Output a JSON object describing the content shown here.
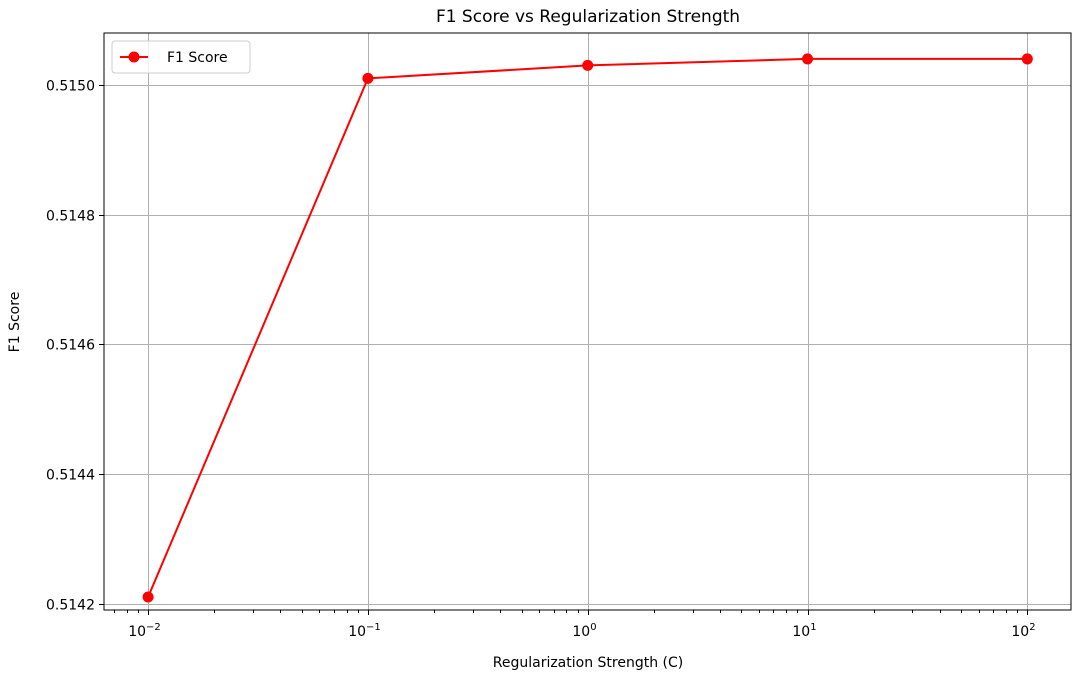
{
  "chart_data": {
    "type": "line",
    "title": "F1 Score vs Regularization Strength",
    "xlabel": "Regularization Strength (C)",
    "ylabel": "F1 Score",
    "xscale": "log",
    "x": [
      0.01,
      0.1,
      1,
      10,
      100
    ],
    "xtick_labels": [
      "10^-2",
      "10^-1",
      "10^0",
      "10^1",
      "10^2"
    ],
    "xlim": [
      0.0063,
      158
    ],
    "series": [
      {
        "name": "F1 Score",
        "color": "#ff0000",
        "marker": "circle",
        "values": [
          0.51421,
          0.51501,
          0.51503,
          0.51504,
          0.51504
        ]
      }
    ],
    "yticks": [
      0.5142,
      0.5144,
      0.5146,
      0.5148,
      0.515
    ],
    "ytick_labels": [
      "0.5142",
      "0.5144",
      "0.5146",
      "0.5148",
      "0.5150"
    ],
    "ylim": [
      0.51419,
      0.51508
    ],
    "grid": true,
    "legend_position": "upper left"
  }
}
